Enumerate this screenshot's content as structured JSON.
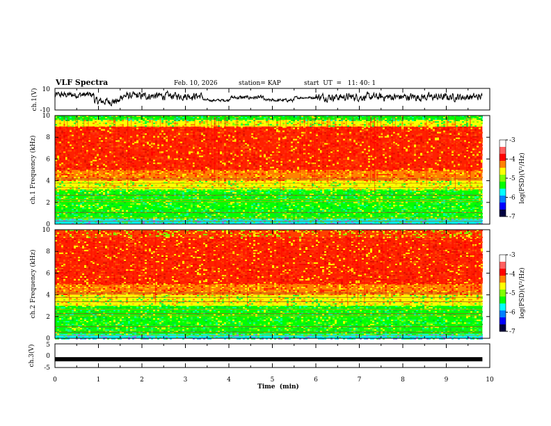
{
  "header": {
    "title": "VLF Spectra",
    "date": "Feb. 10, 2026",
    "station": "station= KAP",
    "start": "start  UT  =   11: 40: 1"
  },
  "colors": {
    "low": "#00003c",
    "blue": "#0000ff",
    "cyan": "#00ffff",
    "green": "#00e040",
    "yellow": "#ffff00",
    "red": "#ff2000",
    "high": "#ffffff"
  },
  "chart_data": [
    {
      "type": "line",
      "name": "ch1-waveform",
      "ylabel": "ch.1(V)",
      "ylim": [
        -10,
        10
      ],
      "y_ticks": [
        "10",
        "-10"
      ],
      "xlim": [
        0,
        10
      ],
      "description_series": "noisy voltage trace",
      "segments": [
        {
          "x0": 0.0,
          "x1": 0.9,
          "mean": 4,
          "amp": 5
        },
        {
          "x0": 0.9,
          "x1": 1.5,
          "mean": -2,
          "amp": 6
        },
        {
          "x0": 1.5,
          "x1": 3.4,
          "mean": 3,
          "amp": 6
        },
        {
          "x0": 3.4,
          "x1": 4.0,
          "mean": -1,
          "amp": 2
        },
        {
          "x0": 4.0,
          "x1": 4.8,
          "mean": 1.5,
          "amp": 3
        },
        {
          "x0": 4.8,
          "x1": 5.5,
          "mean": -1,
          "amp": 2.5
        },
        {
          "x0": 5.5,
          "x1": 6.0,
          "mean": 1.5,
          "amp": 2
        },
        {
          "x0": 6.0,
          "x1": 9.83,
          "mean": 2,
          "amp": 6
        }
      ]
    },
    {
      "type": "heatmap",
      "name": "ch1-spectrogram",
      "ylabel": "ch.1 Frequency (kHz)",
      "ylim": [
        0,
        10
      ],
      "y_ticks": [
        "0",
        "2",
        "4",
        "6",
        "8",
        "10"
      ],
      "xlim": [
        0,
        10
      ],
      "data_end_min": 9.83,
      "bands_khz": [
        {
          "from": 0,
          "to": 0.5,
          "level": "cyan"
        },
        {
          "from": 0.5,
          "to": 3.2,
          "level": "green"
        },
        {
          "from": 3.2,
          "to": 4.0,
          "level": "yellow"
        },
        {
          "from": 4.0,
          "to": 5.0,
          "level": "orange"
        },
        {
          "from": 5.0,
          "to": 9.0,
          "level": "red"
        },
        {
          "from": 9.0,
          "to": 9.6,
          "level": "yellow"
        },
        {
          "from": 9.6,
          "to": 10,
          "level": "green"
        }
      ],
      "colorbar": {
        "label": "log(PSD)(V²/Hz)",
        "ticks": [
          "-3",
          "-4",
          "-5",
          "-6",
          "-7"
        ],
        "range": [
          -7,
          -3
        ]
      }
    },
    {
      "type": "heatmap",
      "name": "ch2-spectrogram",
      "ylabel": "ch.2 Frequency (kHz)",
      "ylim": [
        0,
        10
      ],
      "y_ticks": [
        "0",
        "2",
        "4",
        "6",
        "8",
        "10"
      ],
      "xlim": [
        0,
        10
      ],
      "data_end_min": 9.83,
      "bands_khz": [
        {
          "from": 0,
          "to": 0.4,
          "level": "cyan"
        },
        {
          "from": 0.4,
          "to": 3.0,
          "level": "green"
        },
        {
          "from": 3.0,
          "to": 4.0,
          "level": "yellow"
        },
        {
          "from": 4.0,
          "to": 5.0,
          "level": "orange"
        },
        {
          "from": 5.0,
          "to": 9.3,
          "level": "red"
        },
        {
          "from": 9.3,
          "to": 10,
          "level": "yellowred"
        }
      ],
      "colorbar": {
        "label": "log(PSD)(V²/Hz)",
        "ticks": [
          "-3",
          "-4",
          "-5",
          "-6",
          "-7"
        ],
        "range": [
          -7,
          -3
        ]
      }
    },
    {
      "type": "line",
      "name": "ch3-waveform",
      "ylabel": "ch.3(V)",
      "ylim": [
        -5,
        5
      ],
      "y_ticks": [
        "5",
        "0",
        "-5"
      ],
      "xlim": [
        0,
        10
      ],
      "segments": [
        {
          "x0": 0.0,
          "x1": 9.83,
          "mean": -1.5,
          "amp": 0.4
        }
      ]
    }
  ],
  "xaxis": {
    "label": "Time  (min)",
    "ticks": [
      "0",
      "1",
      "2",
      "3",
      "4",
      "5",
      "6",
      "7",
      "8",
      "9",
      "10"
    ]
  }
}
